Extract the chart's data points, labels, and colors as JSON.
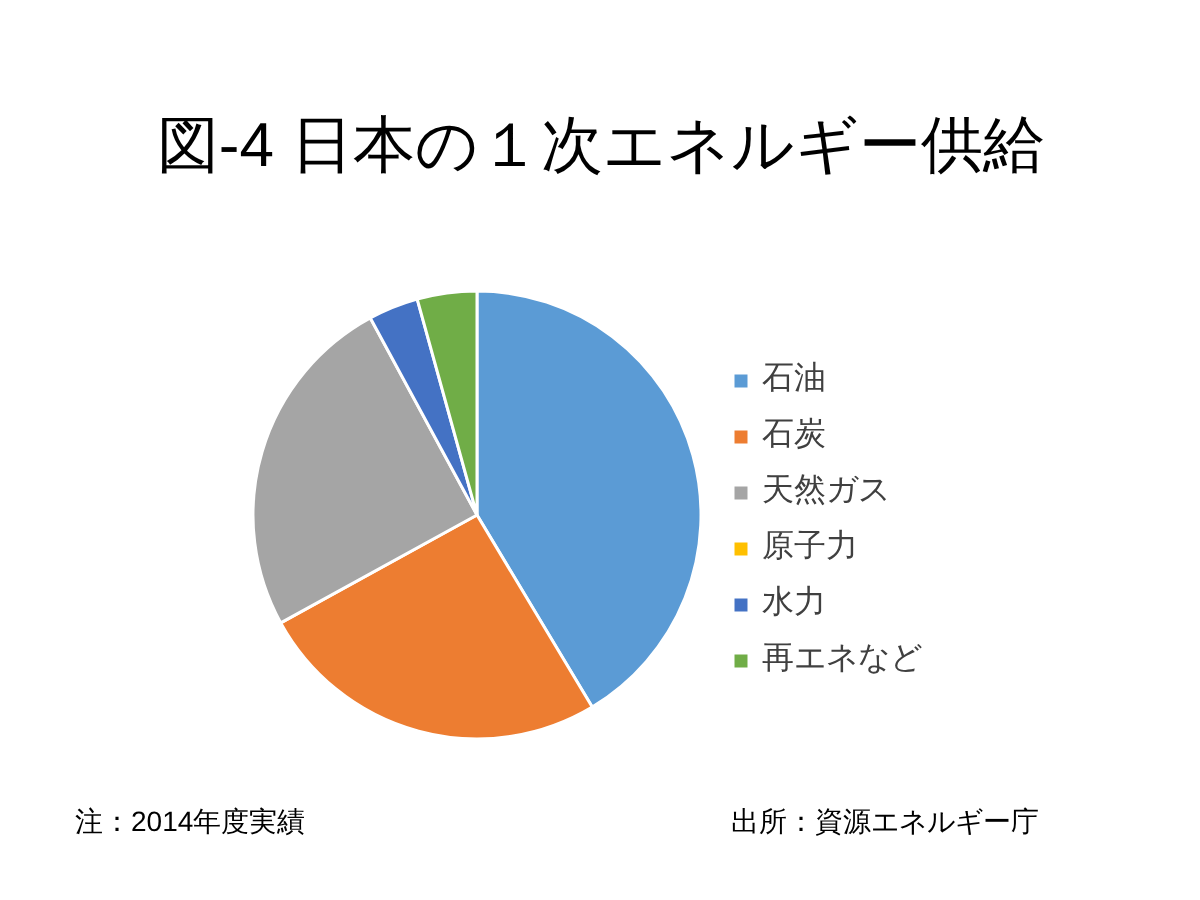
{
  "chart_data": {
    "type": "pie",
    "title": "図-4 日本の１次エネルギー供給",
    "categories": [
      "石油",
      "石炭",
      "天然ガス",
      "原子力",
      "水力",
      "再エネなど"
    ],
    "values": [
      41.4,
      25.6,
      25.1,
      0,
      3.6,
      4.3
    ],
    "colors": [
      "#5b9bd5",
      "#ed7d31",
      "#a5a5a5",
      "#ffc000",
      "#4472c4",
      "#70ad47"
    ],
    "legend": "right",
    "annotations": [
      "注：2014年度実績",
      "出所：資源エネルギー庁"
    ]
  }
}
